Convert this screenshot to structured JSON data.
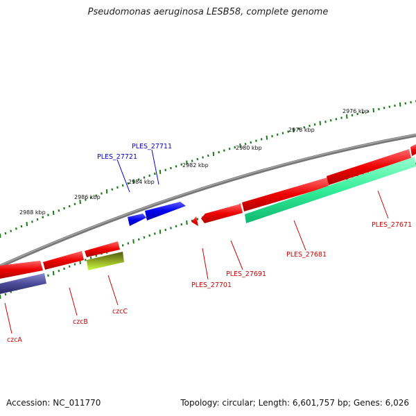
{
  "title": "Pseudomonas aeruginosa LESB58, complete genome",
  "footer": {
    "accession": "Accession: NC_011770",
    "stats": "Topology: circular; Length: 6,601,757 bp; Genes: 6,026"
  },
  "ruler": {
    "labels": [
      "2988 kbp",
      "2986 kbp",
      "2984 kbp",
      "2982 kbp",
      "2980 kbp",
      "2978 kbp",
      "2976 kbp"
    ],
    "tick_color": "#1a7a1a"
  },
  "genes": [
    {
      "id": "PLES_27711",
      "label": "PLES_27711",
      "color": "#0000ff",
      "label_color": "#0000cc"
    },
    {
      "id": "PLES_27721",
      "label": "PLES_27721",
      "color": "#0000ff",
      "label_color": "#0000cc"
    },
    {
      "id": "PLES_27671",
      "label": "PLES_27671",
      "color": "#ff0000",
      "label_color": "#cc0000"
    },
    {
      "id": "PLES_27681",
      "label": "PLES_27681",
      "color": "#33ee99",
      "label_color": "#cc0000"
    },
    {
      "id": "PLES_27691",
      "label": "PLES_27691",
      "color": "#ff0000",
      "label_color": "#cc0000"
    },
    {
      "id": "PLES_27701",
      "label": "PLES_27701",
      "color": "#ff0000",
      "label_color": "#cc0000"
    },
    {
      "id": "czcA",
      "label": "czcA",
      "color": "#4b4b9a",
      "label_color": "#cc0000"
    },
    {
      "id": "czcB",
      "label": "czcB",
      "color": "#ff0000",
      "label_color": "#cc0000"
    },
    {
      "id": "czcC",
      "label": "czcC",
      "color": "#aaee22",
      "label_color": "#cc0000"
    }
  ],
  "colors": {
    "backbone": "#777777",
    "forward": "#0000ff",
    "reverse": "#ff0000"
  }
}
